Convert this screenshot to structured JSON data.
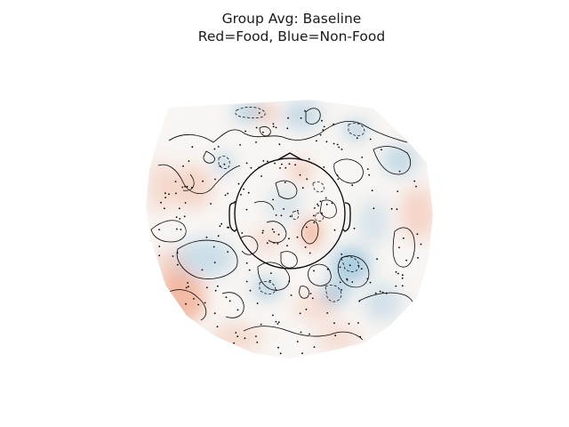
{
  "title": {
    "line1": "Group Avg: Baseline",
    "line2": "Red=Food, Blue=Non-Food"
  },
  "topomap": {
    "positive_color": "#ef8a62",
    "negative_color": "#67a9cf",
    "contour_color": "#000000",
    "head_outline_color": "#000000",
    "sensor_marker_color": "#000000"
  }
}
